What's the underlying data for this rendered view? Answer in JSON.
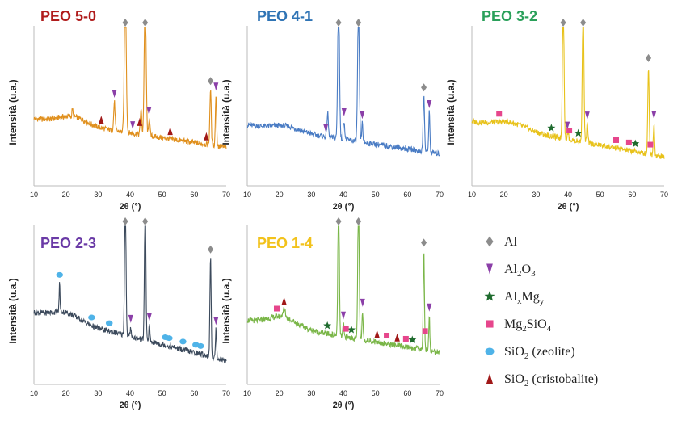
{
  "chart_data": [
    {
      "type": "line",
      "title": "PEO 5-0",
      "title_color": "#b01c1c",
      "line_color": "#e0901e",
      "xlabel": "2θ (°)",
      "ylabel": "Intensità (u.a.)",
      "xlim": [
        10,
        70
      ],
      "xticks": [
        10,
        20,
        30,
        40,
        50,
        60,
        70
      ],
      "peaks": [
        {
          "x": 38.5,
          "h": 0.95,
          "w": 0.6
        },
        {
          "x": 44.7,
          "h": 0.92,
          "w": 0.6
        },
        {
          "x": 65.1,
          "h": 0.35,
          "w": 0.45
        },
        {
          "x": 35.1,
          "h": 0.18,
          "w": 0.45
        },
        {
          "x": 43.4,
          "h": 0.16,
          "w": 0.45
        },
        {
          "x": 46.0,
          "h": 0.12,
          "w": 0.4
        },
        {
          "x": 66.8,
          "h": 0.32,
          "w": 0.4
        },
        {
          "x": 22.0,
          "h": 0.05,
          "w": 0.3
        }
      ],
      "markers": [
        {
          "type": "Al",
          "x": 38.5
        },
        {
          "type": "Al",
          "x": 44.7
        },
        {
          "type": "Al",
          "x": 65.1
        },
        {
          "type": "Al2O3",
          "x": 35.1
        },
        {
          "type": "Al2O3",
          "x": 40.8
        },
        {
          "type": "Al2O3",
          "x": 45.9
        },
        {
          "type": "Al2O3",
          "x": 66.8
        },
        {
          "type": "SiO2_cristobalite",
          "x": 31.0
        },
        {
          "type": "SiO2_cristobalite",
          "x": 43.0
        },
        {
          "type": "SiO2_cristobalite",
          "x": 52.5
        },
        {
          "type": "SiO2_cristobalite",
          "x": 63.8
        }
      ]
    },
    {
      "type": "line",
      "title": "PEO 4-1",
      "title_color": "#2f74b5",
      "line_color": "#4a7cc4",
      "xlabel": "2θ (°)",
      "ylabel": "Intensità (u.a.)",
      "xlim": [
        10,
        70
      ],
      "xticks": [
        10,
        20,
        30,
        40,
        50,
        60,
        70
      ],
      "peaks": [
        {
          "x": 38.5,
          "h": 0.95,
          "w": 0.55
        },
        {
          "x": 44.7,
          "h": 0.85,
          "w": 0.55
        },
        {
          "x": 65.1,
          "h": 0.35,
          "w": 0.45
        },
        {
          "x": 35.1,
          "h": 0.15,
          "w": 0.45
        },
        {
          "x": 40.2,
          "h": 0.12,
          "w": 0.45
        },
        {
          "x": 45.9,
          "h": 0.12,
          "w": 0.4
        },
        {
          "x": 66.8,
          "h": 0.25,
          "w": 0.4
        }
      ],
      "markers": [
        {
          "type": "Al",
          "x": 38.5
        },
        {
          "type": "Al",
          "x": 44.7
        },
        {
          "type": "Al",
          "x": 65.1
        },
        {
          "type": "Al2O3",
          "x": 34.5
        },
        {
          "type": "Al2O3",
          "x": 40.2
        },
        {
          "type": "Al2O3",
          "x": 45.9
        },
        {
          "type": "Al2O3",
          "x": 66.8
        }
      ]
    },
    {
      "type": "line",
      "title": "PEO 3-2",
      "title_color": "#2aa05a",
      "line_color": "#e8c21a",
      "xlabel": "2θ (°)",
      "ylabel": "Intensità (u.a.)",
      "xlim": [
        10,
        70
      ],
      "xticks": [
        10,
        20,
        30,
        40,
        50,
        60,
        70
      ],
      "peaks": [
        {
          "x": 38.5,
          "h": 0.95,
          "w": 0.5
        },
        {
          "x": 44.7,
          "h": 0.92,
          "w": 0.5
        },
        {
          "x": 65.1,
          "h": 0.55,
          "w": 0.45
        },
        {
          "x": 46.0,
          "h": 0.12,
          "w": 0.4
        },
        {
          "x": 66.8,
          "h": 0.2,
          "w": 0.4
        },
        {
          "x": 40.0,
          "h": 0.06,
          "w": 0.4
        }
      ],
      "markers": [
        {
          "type": "Al",
          "x": 38.5
        },
        {
          "type": "Al",
          "x": 44.7
        },
        {
          "type": "Al",
          "x": 65.1
        },
        {
          "type": "Al2O3",
          "x": 39.8
        },
        {
          "type": "Al2O3",
          "x": 46.0
        },
        {
          "type": "Al2O3",
          "x": 66.8
        },
        {
          "type": "AlxMgy",
          "x": 34.8
        },
        {
          "type": "AlxMgy",
          "x": 43.2
        },
        {
          "type": "AlxMgy",
          "x": 61.0
        },
        {
          "type": "Mg2SiO4",
          "x": 18.5
        },
        {
          "type": "Mg2SiO4",
          "x": 40.4
        },
        {
          "type": "Mg2SiO4",
          "x": 55.0
        },
        {
          "type": "Mg2SiO4",
          "x": 59.0
        },
        {
          "type": "Mg2SiO4",
          "x": 65.7
        }
      ]
    },
    {
      "type": "line",
      "title": "PEO 2-3",
      "title_color": "#6a3aa6",
      "line_color": "#3c4a5c",
      "xlabel": "2θ (°)",
      "ylabel": "Intensità (u.a.)",
      "xlim": [
        10,
        70
      ],
      "xticks": [
        10,
        20,
        30,
        40,
        50,
        60,
        70
      ],
      "peaks": [
        {
          "x": 38.5,
          "h": 0.95,
          "w": 0.45
        },
        {
          "x": 44.7,
          "h": 0.92,
          "w": 0.45
        },
        {
          "x": 65.1,
          "h": 0.62,
          "w": 0.4
        },
        {
          "x": 18.0,
          "h": 0.18,
          "w": 0.3
        },
        {
          "x": 46.0,
          "h": 0.1,
          "w": 0.35
        },
        {
          "x": 66.8,
          "h": 0.18,
          "w": 0.35
        },
        {
          "x": 40.2,
          "h": 0.06,
          "w": 0.35
        }
      ],
      "markers": [
        {
          "type": "Al",
          "x": 38.5
        },
        {
          "type": "Al",
          "x": 44.7
        },
        {
          "type": "Al",
          "x": 65.1
        },
        {
          "type": "Al2O3",
          "x": 40.2
        },
        {
          "type": "Al2O3",
          "x": 46.0
        },
        {
          "type": "Al2O3",
          "x": 66.8
        },
        {
          "type": "SiO2_zeolite",
          "x": 18.0
        },
        {
          "type": "SiO2_zeolite",
          "x": 28.0
        },
        {
          "type": "SiO2_zeolite",
          "x": 33.5
        },
        {
          "type": "SiO2_zeolite",
          "x": 51.0
        },
        {
          "type": "SiO2_zeolite",
          "x": 52.2
        },
        {
          "type": "SiO2_zeolite",
          "x": 56.5
        },
        {
          "type": "SiO2_zeolite",
          "x": 60.5
        },
        {
          "type": "SiO2_zeolite",
          "x": 62.0
        }
      ]
    },
    {
      "type": "line",
      "title": "PEO 1-4",
      "title_color": "#f2c21b",
      "line_color": "#7ab648",
      "xlabel": "2θ (°)",
      "ylabel": "Intensità (u.a.)",
      "xlim": [
        10,
        70
      ],
      "xticks": [
        10,
        20,
        30,
        40,
        50,
        60,
        70
      ],
      "peaks": [
        {
          "x": 38.5,
          "h": 0.95,
          "w": 0.45
        },
        {
          "x": 44.7,
          "h": 0.92,
          "w": 0.45
        },
        {
          "x": 65.1,
          "h": 0.62,
          "w": 0.4
        },
        {
          "x": 46.0,
          "h": 0.18,
          "w": 0.35
        },
        {
          "x": 66.8,
          "h": 0.22,
          "w": 0.35
        },
        {
          "x": 40.0,
          "h": 0.08,
          "w": 0.35
        },
        {
          "x": 21.5,
          "h": 0.05,
          "w": 0.8
        }
      ],
      "markers": [
        {
          "type": "Al",
          "x": 38.5
        },
        {
          "type": "Al",
          "x": 44.7
        },
        {
          "type": "Al",
          "x": 65.1
        },
        {
          "type": "Al2O3",
          "x": 40.0
        },
        {
          "type": "Al2O3",
          "x": 46.0
        },
        {
          "type": "Al2O3",
          "x": 66.8
        },
        {
          "type": "AlxMgy",
          "x": 35.0
        },
        {
          "type": "AlxMgy",
          "x": 42.5
        },
        {
          "type": "AlxMgy",
          "x": 61.5
        },
        {
          "type": "Mg2SiO4",
          "x": 19.2
        },
        {
          "type": "Mg2SiO4",
          "x": 40.8
        },
        {
          "type": "Mg2SiO4",
          "x": 53.5
        },
        {
          "type": "Mg2SiO4",
          "x": 59.5
        },
        {
          "type": "Mg2SiO4",
          "x": 65.5
        },
        {
          "type": "SiO2_cristobalite",
          "x": 21.5
        },
        {
          "type": "SiO2_cristobalite",
          "x": 50.5
        },
        {
          "type": "SiO2_cristobalite",
          "x": 56.8
        }
      ]
    }
  ],
  "legend": [
    {
      "key": "Al",
      "symbol": "diamond",
      "color": "#8c8c8c",
      "base": "Al",
      "parts": []
    },
    {
      "key": "Al2O3",
      "symbol": "triangle-down",
      "color": "#8b3fa8",
      "base": "Al",
      "parts": [
        [
          "2",
          "sub"
        ],
        [
          "O",
          ""
        ],
        [
          "3",
          "sub"
        ]
      ]
    },
    {
      "key": "AlxMgy",
      "symbol": "star",
      "color": "#1e6b2e",
      "base": "Al",
      "parts": [
        [
          "x",
          "sub"
        ],
        [
          "Mg",
          ""
        ],
        [
          "y",
          "sub"
        ]
      ]
    },
    {
      "key": "Mg2SiO4",
      "symbol": "square",
      "color": "#e6468c",
      "base": "Mg",
      "parts": [
        [
          "2",
          "sub"
        ],
        [
          "SiO",
          ""
        ],
        [
          "4",
          "sub"
        ]
      ]
    },
    {
      "key": "SiO2_zeolite",
      "symbol": "circle",
      "color": "#4fb3e8",
      "base": "SiO",
      "parts": [
        [
          "2",
          "sub"
        ],
        [
          " (zeolite)",
          ""
        ]
      ]
    },
    {
      "key": "SiO2_cristobalite",
      "symbol": "triangle-up",
      "color": "#a01818",
      "base": "SiO",
      "parts": [
        [
          "2",
          "sub"
        ],
        [
          " (cristobalite)",
          ""
        ]
      ]
    }
  ]
}
